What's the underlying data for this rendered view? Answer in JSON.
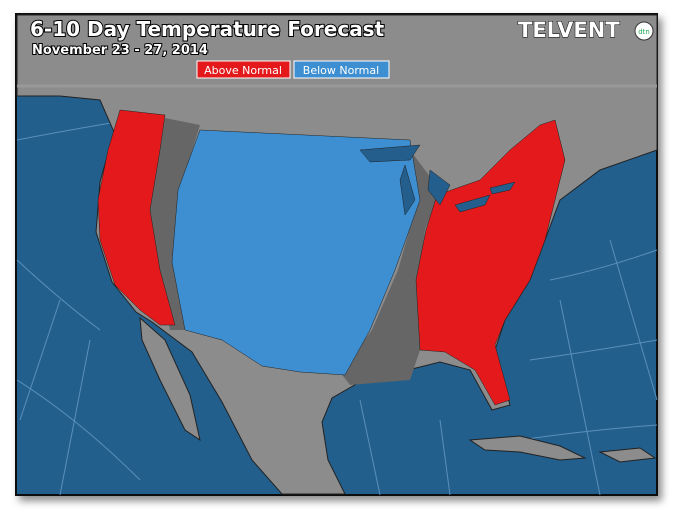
{
  "header": {
    "title": "6-10 Day Temperature Forecast",
    "subtitle": "November 23 - 27, 2014",
    "logo": "TELVENT",
    "logo_badge": "dtn"
  },
  "legend": [
    {
      "label": "Above Normal",
      "color": "#e3191c"
    },
    {
      "label": "Below Normal",
      "color": "#3d8fd1"
    }
  ]
}
